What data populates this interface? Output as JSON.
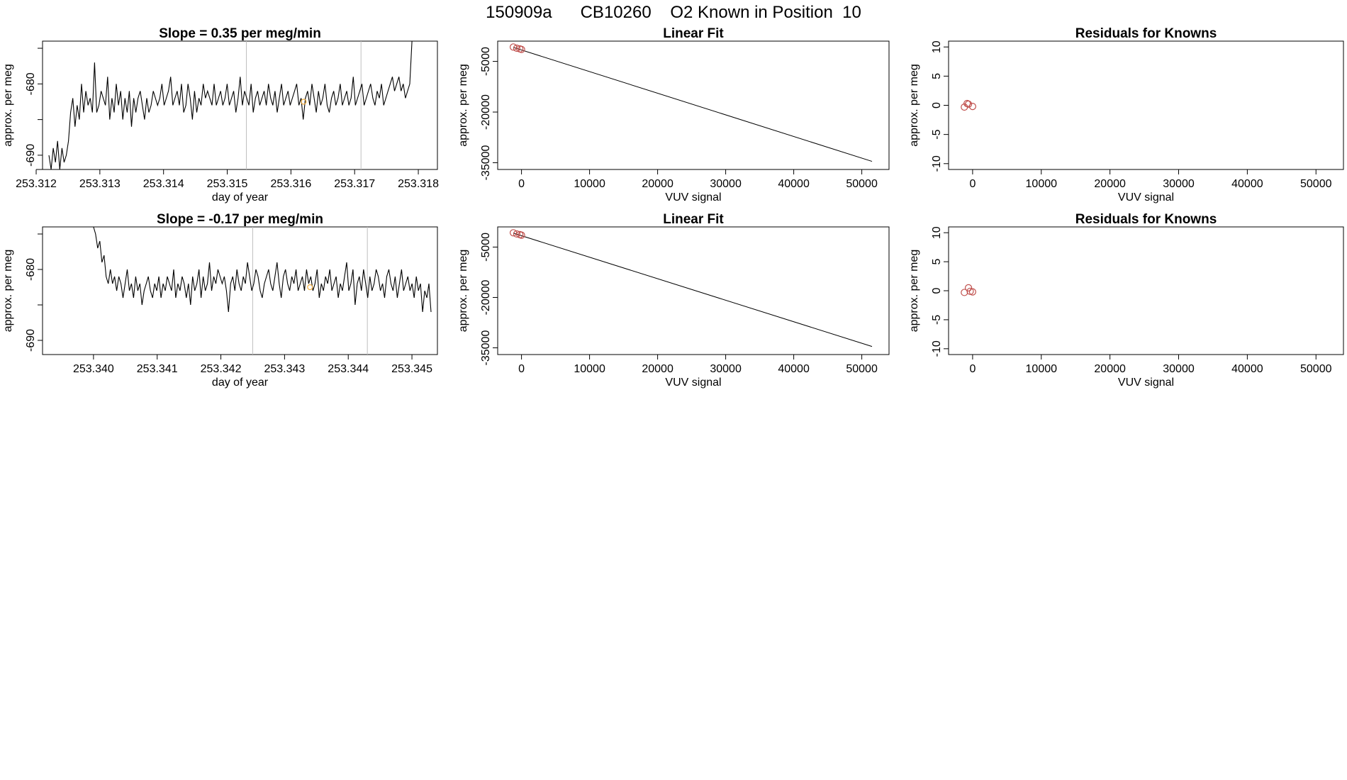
{
  "page_title": "150909a      CB10260    O2 Known in Position  10",
  "colors": {
    "trace": "#000000",
    "marker": "#f5b041",
    "points": "#c0504d",
    "vline": "#bfbfbf"
  },
  "chart_data": [
    {
      "id": "slope-top",
      "type": "line",
      "title": "Slope =  0.35  per meg/min",
      "xlabel": "day of year",
      "ylabel": "approx. per meg",
      "xlim": [
        253.3121,
        253.3183
      ],
      "ylim": [
        -692,
        -674
      ],
      "xticks": [
        253.312,
        253.313,
        253.314,
        253.315,
        253.316,
        253.317,
        253.318
      ],
      "xtick_labels": [
        "253.312",
        "253.313",
        "253.314",
        "253.315",
        "253.316",
        "253.317",
        "253.318"
      ],
      "yticks": [
        -690,
        -680
      ],
      "ytick_labels": [
        "-690",
        "-680"
      ],
      "x_start": 253.3122,
      "x_end": 253.3179,
      "trace": [
        -690,
        -692,
        -689,
        -691,
        -688,
        -692,
        -689,
        -691,
        -690,
        -688,
        -684,
        -682,
        -686,
        -683,
        -685,
        -680,
        -684,
        -681,
        -683,
        -682,
        -684,
        -677,
        -684,
        -683,
        -681,
        -682,
        -683,
        -679,
        -685,
        -682,
        -684,
        -680,
        -683,
        -681,
        -685,
        -682,
        -684,
        -681,
        -686,
        -682,
        -684,
        -682,
        -681,
        -683,
        -685,
        -682,
        -684,
        -683,
        -681,
        -682,
        -683,
        -682,
        -680,
        -683,
        -682,
        -681,
        -679,
        -683,
        -682,
        -681,
        -683,
        -680,
        -684,
        -683,
        -680,
        -682,
        -685,
        -681,
        -684,
        -682,
        -683,
        -680,
        -682,
        -681,
        -682,
        -683,
        -680,
        -683,
        -682,
        -681,
        -683,
        -682,
        -680,
        -683,
        -682,
        -681,
        -684,
        -682,
        -679,
        -683,
        -681,
        -682,
        -683,
        -680,
        -684,
        -682,
        -681,
        -683,
        -682,
        -681,
        -683,
        -680,
        -682,
        -683,
        -681,
        -684,
        -682,
        -680,
        -683,
        -682,
        -681,
        -683,
        -682,
        -681,
        -680,
        -683,
        -682,
        -685,
        -682,
        -681,
        -683,
        -680,
        -682,
        -684,
        -681,
        -683,
        -682,
        -680,
        -683,
        -684,
        -682,
        -681,
        -683,
        -682,
        -680,
        -683,
        -682,
        -681,
        -683,
        -682,
        -679,
        -683,
        -682,
        -681,
        -680,
        -683,
        -682,
        -681,
        -680,
        -682,
        -683,
        -681,
        -682,
        -680,
        -683,
        -682,
        -681,
        -680,
        -679,
        -681,
        -680,
        -679,
        -681,
        -680,
        -682,
        -681,
        -680,
        -674
      ],
      "vlines": [
        253.3153,
        253.3171
      ],
      "markers": [
        {
          "x": 253.3162,
          "y": -682.5
        }
      ]
    },
    {
      "id": "linear-top",
      "type": "scatter",
      "title": "Linear Fit",
      "xlabel": "VUV signal",
      "ylabel": "approx. per meg",
      "xlim": [
        -3500,
        54000
      ],
      "ylim": [
        -37000,
        1000
      ],
      "xticks": [
        0,
        10000,
        20000,
        30000,
        40000,
        50000
      ],
      "xtick_labels": [
        "0",
        "10000",
        "20000",
        "30000",
        "40000",
        "50000"
      ],
      "yticks": [
        -35000,
        -20000,
        -5000
      ],
      "ytick_labels": [
        "-35000",
        "-20000",
        "-5000"
      ],
      "fit_line": [
        [
          -1200,
          -850
        ],
        [
          51500,
          -34600
        ]
      ],
      "points": [
        [
          -1200,
          -750
        ],
        [
          -700,
          -1100
        ],
        [
          -250,
          -1300
        ],
        [
          0,
          -1450
        ]
      ]
    },
    {
      "id": "residuals-top",
      "type": "scatter",
      "title": "Residuals for Knowns",
      "xlabel": "VUV signal",
      "ylabel": "approx. per meg",
      "xlim": [
        -3500,
        54000
      ],
      "ylim": [
        -11,
        11
      ],
      "xticks": [
        0,
        10000,
        20000,
        30000,
        40000,
        50000
      ],
      "xtick_labels": [
        "0",
        "10000",
        "20000",
        "30000",
        "40000",
        "50000"
      ],
      "yticks": [
        -10,
        -5,
        0,
        5,
        10
      ],
      "ytick_labels": [
        "-10",
        "-5",
        "0",
        "5",
        "10"
      ],
      "points": [
        [
          -1200,
          -0.3
        ],
        [
          -800,
          0.3
        ],
        [
          -600,
          0.2
        ],
        [
          0,
          -0.2
        ]
      ]
    },
    {
      "id": "slope-bottom",
      "type": "line",
      "title": "Slope =  -0.17  per meg/min",
      "xlabel": "day of year",
      "ylabel": "approx. per meg",
      "xlim": [
        253.3392,
        253.3454
      ],
      "ylim": [
        -692,
        -674
      ],
      "xticks": [
        253.34,
        253.341,
        253.342,
        253.343,
        253.344,
        253.345
      ],
      "xtick_labels": [
        "253.340",
        "253.341",
        "253.342",
        "253.343",
        "253.344",
        "253.345"
      ],
      "yticks": [
        -690,
        -680
      ],
      "ytick_labels": [
        "-690",
        "-680"
      ],
      "x_start": 253.34,
      "x_end": 253.3453,
      "trace": [
        -674,
        -675,
        -677,
        -676,
        -679,
        -678,
        -681,
        -682,
        -680,
        -682,
        -681,
        -683,
        -681,
        -682,
        -684,
        -682,
        -680,
        -683,
        -682,
        -684,
        -681,
        -683,
        -682,
        -685,
        -683,
        -682,
        -681,
        -683,
        -684,
        -682,
        -683,
        -681,
        -684,
        -682,
        -683,
        -681,
        -682,
        -683,
        -680,
        -684,
        -682,
        -683,
        -681,
        -682,
        -684,
        -682,
        -685,
        -681,
        -683,
        -682,
        -680,
        -684,
        -681,
        -683,
        -682,
        -679,
        -683,
        -681,
        -682,
        -680,
        -681,
        -682,
        -681,
        -683,
        -686,
        -682,
        -681,
        -683,
        -680,
        -682,
        -683,
        -681,
        -682,
        -679,
        -681,
        -683,
        -682,
        -680,
        -681,
        -683,
        -684,
        -682,
        -681,
        -680,
        -682,
        -683,
        -681,
        -679,
        -682,
        -684,
        -681,
        -680,
        -682,
        -683,
        -681,
        -682,
        -680,
        -683,
        -682,
        -681,
        -683,
        -680,
        -682,
        -681,
        -683,
        -682,
        -680,
        -684,
        -682,
        -683,
        -681,
        -682,
        -680,
        -683,
        -682,
        -681,
        -684,
        -682,
        -683,
        -681,
        -679,
        -683,
        -682,
        -680,
        -685,
        -682,
        -681,
        -683,
        -680,
        -682,
        -684,
        -681,
        -683,
        -682,
        -680,
        -681,
        -683,
        -682,
        -684,
        -681,
        -680,
        -682,
        -683,
        -681,
        -684,
        -682,
        -680,
        -683,
        -682,
        -681,
        -683,
        -682,
        -684,
        -681,
        -683,
        -682,
        -686,
        -683,
        -684,
        -682,
        -686
      ],
      "vlines": [
        253.3425,
        253.3443
      ],
      "markers": [
        {
          "x": 253.3434,
          "y": -682.5
        }
      ]
    },
    {
      "id": "linear-bottom",
      "type": "scatter",
      "title": "Linear Fit",
      "xlabel": "VUV signal",
      "ylabel": "approx. per meg",
      "xlim": [
        -3500,
        54000
      ],
      "ylim": [
        -37000,
        1000
      ],
      "xticks": [
        0,
        10000,
        20000,
        30000,
        40000,
        50000
      ],
      "xtick_labels": [
        "0",
        "10000",
        "20000",
        "30000",
        "40000",
        "50000"
      ],
      "yticks": [
        -35000,
        -20000,
        -5000
      ],
      "ytick_labels": [
        "-35000",
        "-20000",
        "-5000"
      ],
      "fit_line": [
        [
          -1200,
          -850
        ],
        [
          51500,
          -34600
        ]
      ],
      "points": [
        [
          -1200,
          -750
        ],
        [
          -700,
          -1100
        ],
        [
          -250,
          -1300
        ],
        [
          0,
          -1450
        ]
      ]
    },
    {
      "id": "residuals-bottom",
      "type": "scatter",
      "title": "Residuals for Knowns",
      "xlabel": "VUV signal",
      "ylabel": "approx. per meg",
      "xlim": [
        -3500,
        54000
      ],
      "ylim": [
        -11,
        11
      ],
      "xticks": [
        0,
        10000,
        20000,
        30000,
        40000,
        50000
      ],
      "xtick_labels": [
        "0",
        "10000",
        "20000",
        "30000",
        "40000",
        "50000"
      ],
      "yticks": [
        -10,
        -5,
        0,
        5,
        10
      ],
      "ytick_labels": [
        "-10",
        "-5",
        "0",
        "5",
        "10"
      ],
      "points": [
        [
          -1200,
          -0.3
        ],
        [
          -600,
          0.5
        ],
        [
          -350,
          -0.1
        ],
        [
          0,
          -0.2
        ]
      ]
    }
  ]
}
